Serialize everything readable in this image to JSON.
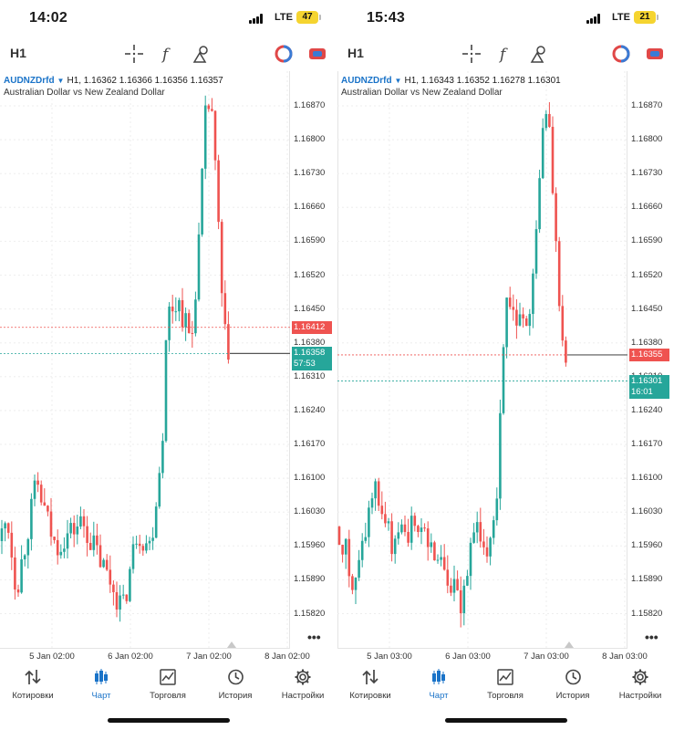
{
  "colors": {
    "bull": "#26a69a",
    "bear": "#ef5350",
    "accent": "#1a73c8",
    "grid": "#e8e8e8"
  },
  "nav_items": [
    {
      "label": "Котировки",
      "icon": "quotes-arrows-icon"
    },
    {
      "label": "Чарт",
      "icon": "candles-icon"
    },
    {
      "label": "Торговля",
      "icon": "trade-chart-icon"
    },
    {
      "label": "История",
      "icon": "history-clock-icon"
    },
    {
      "label": "Настройки",
      "icon": "gear-icon"
    }
  ],
  "screens": [
    {
      "status": {
        "time": "14:02",
        "network": "LTE",
        "battery": "47"
      },
      "timeframe": "H1",
      "symbol": "AUDNZDrfd",
      "ohlc": "H1, 1.16362 1.16366 1.16356 1.16357",
      "description": "Australian Dollar vs New Zealand Dollar",
      "y_ticks": [
        "1.16870",
        "1.16800",
        "1.16730",
        "1.16660",
        "1.16590",
        "1.16520",
        "1.16450",
        "1.16380",
        "1.16310",
        "1.16240",
        "1.16170",
        "1.16100",
        "1.16030",
        "1.15960",
        "1.15890",
        "1.15820"
      ],
      "ask_price": "1.16412",
      "bid_price": "1.16358",
      "countdown": "57:53",
      "x_ticks": [
        "5 Jan 02:00",
        "6 Jan 02:00",
        "7 Jan 02:00",
        "8 Jan 02:00"
      ],
      "more": "•••"
    },
    {
      "status": {
        "time": "15:43",
        "network": "LTE",
        "battery": "21"
      },
      "timeframe": "H1",
      "symbol": "AUDNZDrfd",
      "ohlc": "H1, 1.16343 1.16352 1.16278 1.16301",
      "description": "Australian Dollar vs New Zealand Dollar",
      "y_ticks": [
        "1.16870",
        "1.16800",
        "1.16730",
        "1.16660",
        "1.16590",
        "1.16520",
        "1.16450",
        "1.16380",
        "1.16310",
        "1.16240",
        "1.16170",
        "1.16100",
        "1.16030",
        "1.15960",
        "1.15890",
        "1.15820"
      ],
      "ask_price": "1.16355",
      "bid_price": "1.16301",
      "countdown": "16:01",
      "x_ticks": [
        "5 Jan 03:00",
        "6 Jan 03:00",
        "7 Jan 03:00",
        "8 Jan 03:00"
      ],
      "more": "•••"
    }
  ]
}
